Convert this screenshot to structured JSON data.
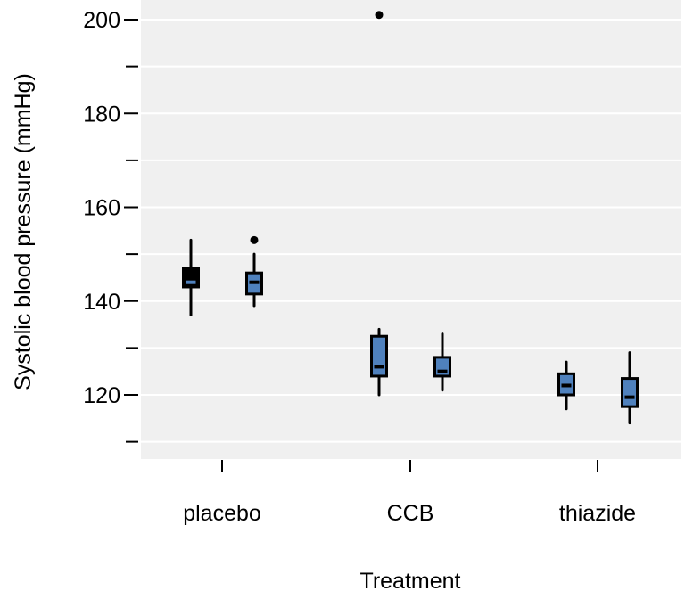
{
  "colors": {
    "panel_background": "#f0f0f0",
    "gridline": "#ffffff",
    "box_dark": "#000000",
    "box_blue": "#4f81bd",
    "whisker": "#000000"
  },
  "chart_data": {
    "type": "boxplot",
    "xlabel": "Treatment",
    "ylabel": "Systolic blood pressure (mmHg)",
    "ylim": [
      106,
      204
    ],
    "y_ticks": [
      {
        "value": 200,
        "label": "200"
      },
      {
        "value": 180,
        "label": "180"
      },
      {
        "value": 160,
        "label": "160"
      },
      {
        "value": 140,
        "label": "140"
      },
      {
        "value": 120,
        "label": "120"
      }
    ],
    "y_minor_ticks": [
      190,
      170,
      150,
      130,
      110
    ],
    "grid": true,
    "categories": [
      "placebo",
      "CCB",
      "thiazide"
    ],
    "boxes": [
      {
        "category": "placebo",
        "group": 1,
        "color": "dark",
        "whisker_low": 137,
        "q1": 143,
        "median": 144,
        "q3": 147,
        "whisker_high": 153,
        "outliers": []
      },
      {
        "category": "placebo",
        "group": 2,
        "color": "blue",
        "whisker_low": 139,
        "q1": 141.5,
        "median": 144,
        "q3": 146,
        "whisker_high": 150,
        "outliers": [
          153
        ]
      },
      {
        "category": "CCB",
        "group": 1,
        "color": "blue",
        "whisker_low": 120,
        "q1": 124,
        "median": 126,
        "q3": 132.5,
        "whisker_high": 134,
        "outliers": [
          201
        ]
      },
      {
        "category": "CCB",
        "group": 2,
        "color": "blue",
        "whisker_low": 121,
        "q1": 124,
        "median": 125,
        "q3": 128,
        "whisker_high": 133,
        "outliers": []
      },
      {
        "category": "thiazide",
        "group": 1,
        "color": "blue",
        "whisker_low": 117,
        "q1": 120,
        "median": 122,
        "q3": 124.5,
        "whisker_high": 127,
        "outliers": []
      },
      {
        "category": "thiazide",
        "group": 2,
        "color": "blue",
        "whisker_low": 114,
        "q1": 117.5,
        "median": 119.5,
        "q3": 123.5,
        "whisker_high": 129,
        "outliers": []
      }
    ]
  }
}
